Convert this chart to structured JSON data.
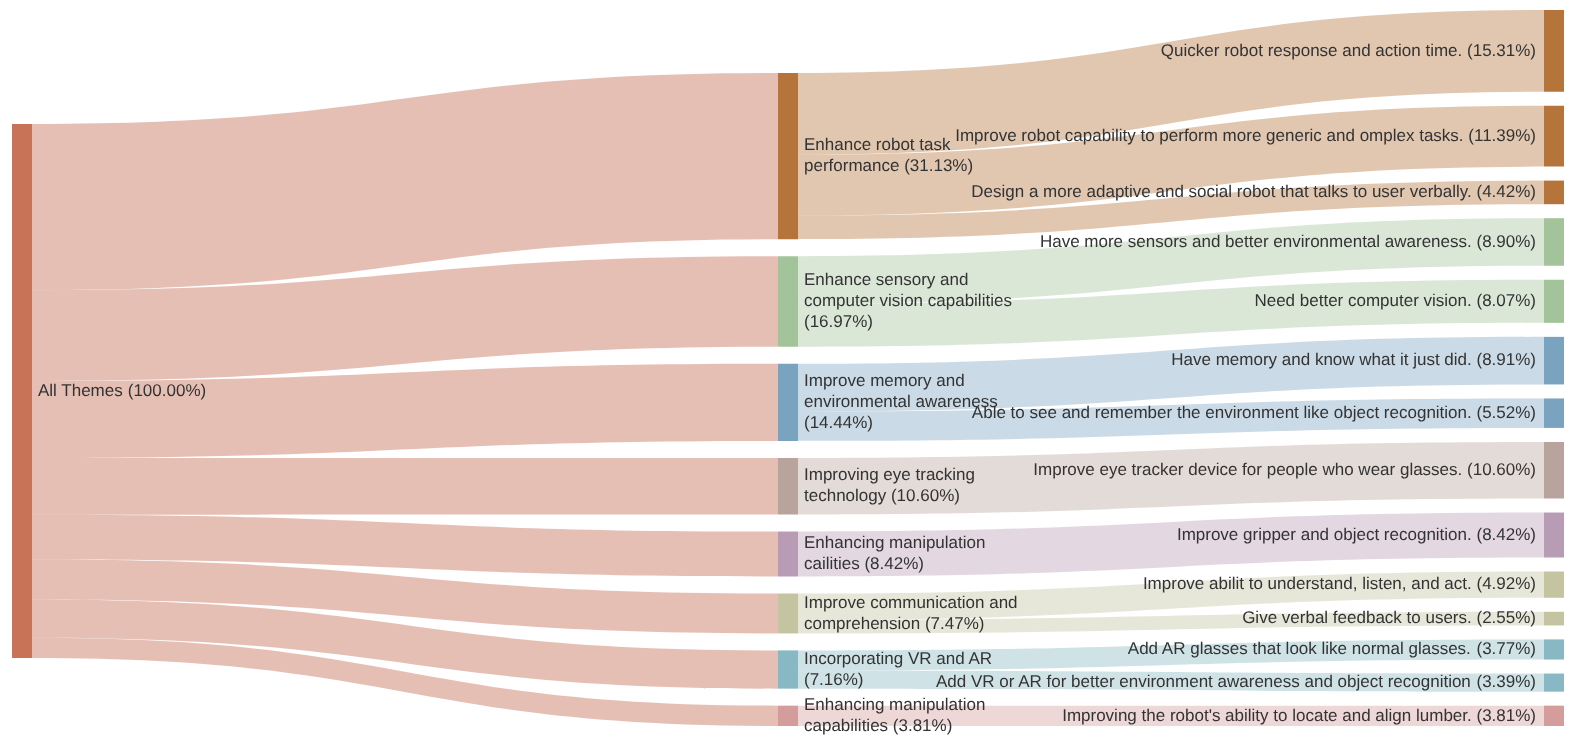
{
  "chart_data": {
    "type": "other",
    "categories": [
      "All Themes",
      "Enhance robot task performance",
      "Enhance sensory and computer vision capabilities",
      "Improve memory and environmental awareness",
      "Improving eye tracking technology",
      "Enhancing manipulation cailities",
      "Improve communication and comprehension",
      "Incorporating VR and AR",
      "Enhancing manipulation capabilities",
      "Quicker robot response and action time.",
      "Improve robot capability to perform more generic and omplex tasks.",
      "Design a more adaptive and social robot that talks to user verbally.",
      "Have more sensors and better environmental awareness.",
      "Need better computer vision.",
      "Have memory and know what it just did.",
      "Able to see and remember the environment like object recognition.",
      "Improve eye tracker device for people who wear glasses.",
      "Improve gripper and object recognition.",
      "Improve abilit to understand, listen, and act.",
      "Give verbal feedback to users.",
      "Add AR glasses that look like normal glasses.",
      "Add VR or AR for better environment awareness and object recognition",
      "Improving the robot's ability to locate and align lumber."
    ],
    "values": [
      100,
      31.13,
      16.97,
      14.44,
      10.6,
      8.42,
      7.47,
      7.16,
      3.81,
      15.31,
      11.39,
      4.42,
      8.9,
      8.07,
      8.91,
      5.52,
      10.6,
      8.42,
      4.92,
      2.55,
      3.77,
      3.39,
      3.81
    ],
    "value_labels": [
      "(100.00%)",
      "(31.13%)",
      "(16.97%)",
      "(14.44%)",
      "(10.60%)",
      "(8.42%)",
      "(7.47%)",
      "(7.16%)",
      "(3.81%)",
      "(15.31%)",
      "(11.39%)",
      "(4.42%)",
      "(8.90%)",
      "(8.07%)",
      "(8.91%)",
      "(5.52%)",
      "(10.60%)",
      "(8.42%)",
      "(4.92%)",
      "(2.55%)",
      "(3.77%)",
      "(3.39%)",
      "(3.81%)"
    ],
    "colors": [
      "#c87258",
      "#b5743a",
      "#a3c49a",
      "#7aa3c0",
      "#b8a49c",
      "#b89cb5",
      "#c4c4a0",
      "#88b8c4",
      "#d49c9a",
      "#b5743a",
      "#b5743a",
      "#b5743a",
      "#a3c49a",
      "#a3c49a",
      "#7aa3c0",
      "#7aa3c0",
      "#b8a49c",
      "#b89cb5",
      "#c4c4a0",
      "#c4c4a0",
      "#88b8c4",
      "#88b8c4",
      "#d49c9a"
    ]
  }
}
